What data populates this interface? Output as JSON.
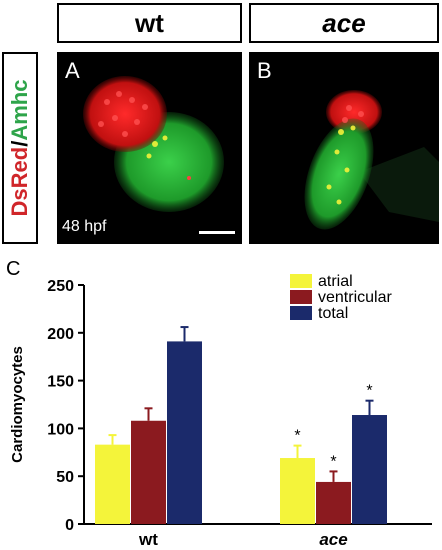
{
  "header": {
    "wt": "wt",
    "ace": "ace"
  },
  "side_label": {
    "red_part": "DsRed",
    "separator": "/",
    "green_part": "Amhc"
  },
  "panels": {
    "a": {
      "letter": "A",
      "stage": "48 hpf"
    },
    "b": {
      "letter": "B"
    }
  },
  "panel_c_letter": "C",
  "colors": {
    "atrial": "#f4f43a",
    "ventricular": "#8b1a1f",
    "total": "#1b2a6b"
  },
  "chart_data": {
    "type": "bar",
    "categories": [
      "wt",
      "ace"
    ],
    "series": [
      {
        "name": "atrial",
        "values": [
          83,
          69
        ],
        "errors": [
          10,
          13
        ]
      },
      {
        "name": "ventricular",
        "values": [
          108,
          44
        ],
        "errors": [
          13,
          11
        ]
      },
      {
        "name": "total",
        "values": [
          191,
          114
        ],
        "errors": [
          15,
          15
        ]
      }
    ],
    "significance": [
      {
        "category": "ace",
        "series": "atrial",
        "mark": "*"
      },
      {
        "category": "ace",
        "series": "ventricular",
        "mark": "*"
      },
      {
        "category": "ace",
        "series": "total",
        "mark": "*"
      }
    ],
    "ylabel": "Cardiomyocytes",
    "xlabel": "",
    "ylim": [
      0,
      250
    ],
    "yticks": [
      0,
      50,
      100,
      150,
      200,
      250
    ],
    "legend_position": "top-right",
    "grid": false
  }
}
